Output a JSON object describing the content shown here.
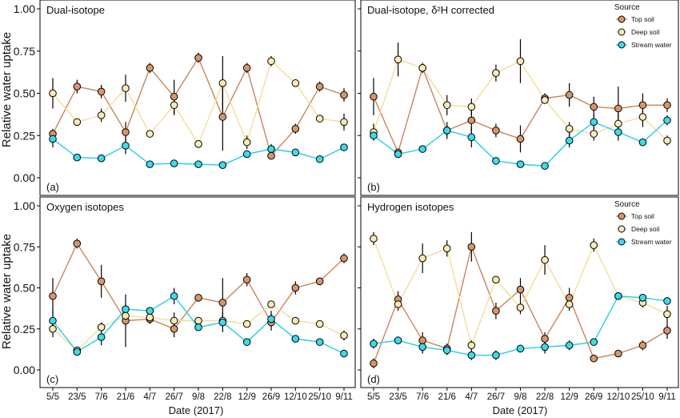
{
  "figure": {
    "ylabel": "Relative water uptake",
    "xlabel": "Date (2017)",
    "legend_title": "Source"
  },
  "colors": {
    "top_soil": "#d9956a",
    "top_soil_line": "#c9845c",
    "deep_soil": "#fbeab4",
    "deep_soil_line": "#f3dd9a",
    "stream_water": "#3ddaec",
    "stream_water_line": "#22d0e3"
  },
  "chart_data": [
    {
      "type": "line",
      "title": "Dual-isotope",
      "panel_label": "(a)",
      "categories": [
        "5/5",
        "23/5",
        "7/6",
        "21/6",
        "4/7",
        "26/7",
        "9/8",
        "22/8",
        "12/9",
        "26/9",
        "12/10",
        "25/10",
        "9/11"
      ],
      "ylim": [
        0,
        1
      ],
      "yticks": [
        "0.00",
        "0.25",
        "0.50",
        "0.75",
        "1.00"
      ],
      "show_legend": false,
      "series": [
        {
          "name": "Top soil",
          "values": [
            0.26,
            0.54,
            0.51,
            0.27,
            0.65,
            0.48,
            0.71,
            0.36,
            0.65,
            0.13,
            0.29,
            0.54,
            0.49
          ],
          "err": [
            0.03,
            0.04,
            0.04,
            0.06,
            0.03,
            0.1,
            0.03,
            0.2,
            0.03,
            0.02,
            0.03,
            0.03,
            0.04
          ]
        },
        {
          "name": "Deep soil",
          "values": [
            0.5,
            0.33,
            0.37,
            0.53,
            0.26,
            0.43,
            0.2,
            0.56,
            0.21,
            0.69,
            0.56,
            0.35,
            0.33
          ],
          "err": [
            0.09,
            0.02,
            0.04,
            0.08,
            0.02,
            0.06,
            0.02,
            0.16,
            0.04,
            0.03,
            0.02,
            0.02,
            0.05
          ]
        },
        {
          "name": "Stream water",
          "values": [
            0.23,
            0.12,
            0.115,
            0.19,
            0.08,
            0.085,
            0.08,
            0.075,
            0.14,
            0.17,
            0.15,
            0.11,
            0.18
          ],
          "err": [
            0.05,
            0.01,
            0.01,
            0.05,
            0.01,
            0.01,
            0.01,
            0.01,
            0.02,
            0.03,
            0.01,
            0.02,
            0.02
          ]
        }
      ]
    },
    {
      "type": "line",
      "title": "Dual-isotope, δ²H corrected",
      "panel_label": "(b)",
      "categories": [
        "5/5",
        "23/5",
        "7/6",
        "21/6",
        "4/7",
        "26/7",
        "9/8",
        "22/8",
        "12/9",
        "26/9",
        "12/10",
        "25/10",
        "9/11"
      ],
      "ylim": [
        0,
        1
      ],
      "yticks": [
        "0.00",
        "0.25",
        "0.50",
        "0.75",
        "1.00"
      ],
      "show_legend": true,
      "series": [
        {
          "name": "Top soil",
          "values": [
            0.48,
            0.15,
            0.65,
            0.28,
            0.34,
            0.28,
            0.23,
            0.47,
            0.49,
            0.42,
            0.41,
            0.43,
            0.43
          ],
          "err": [
            0.11,
            0.02,
            0.02,
            0.05,
            0.07,
            0.04,
            0.08,
            0.03,
            0.07,
            0.06,
            0.13,
            0.07,
            0.04
          ]
        },
        {
          "name": "Deep soil",
          "values": [
            0.27,
            0.7,
            0.65,
            0.43,
            0.42,
            0.62,
            0.69,
            0.46,
            0.29,
            0.26,
            0.32,
            0.36,
            0.22
          ],
          "err": [
            0.05,
            0.1,
            0.03,
            0.06,
            0.05,
            0.05,
            0.13,
            0.02,
            0.04,
            0.04,
            0.06,
            0.06,
            0.03
          ]
        },
        {
          "name": "Stream water",
          "values": [
            0.25,
            0.14,
            0.17,
            0.28,
            0.24,
            0.1,
            0.08,
            0.07,
            0.22,
            0.33,
            0.27,
            0.21,
            0.34
          ],
          "err": [
            0.03,
            0.02,
            0.01,
            0.03,
            0.06,
            0.01,
            0.01,
            0.01,
            0.04,
            0.04,
            0.05,
            0.01,
            0.03
          ]
        }
      ]
    },
    {
      "type": "line",
      "title": "Oxygen isotopes",
      "panel_label": "(c)",
      "categories": [
        "5/5",
        "23/5",
        "7/6",
        "21/6",
        "4/7",
        "26/7",
        "9/8",
        "22/8",
        "12/9",
        "26/9",
        "12/10",
        "25/10",
        "9/11"
      ],
      "ylim": [
        0,
        1
      ],
      "yticks": [
        "0.00",
        "0.25",
        "0.50",
        "0.75",
        "1.00"
      ],
      "show_legend": false,
      "series": [
        {
          "name": "Top soil",
          "values": [
            0.45,
            0.77,
            0.54,
            0.3,
            0.31,
            0.25,
            0.44,
            0.41,
            0.55,
            0.29,
            0.5,
            0.54,
            0.68
          ],
          "err": [
            0.11,
            0.03,
            0.1,
            0.16,
            0.03,
            0.05,
            0.02,
            0.15,
            0.04,
            0.05,
            0.04,
            0.02,
            0.03
          ]
        },
        {
          "name": "Deep soil",
          "values": [
            0.25,
            0.12,
            0.26,
            0.33,
            0.32,
            0.3,
            0.3,
            0.3,
            0.28,
            0.4,
            0.3,
            0.28,
            0.21
          ],
          "err": [
            0.05,
            0.02,
            0.03,
            0.05,
            0.02,
            0.05,
            0.02,
            0.03,
            0.02,
            0.02,
            0.02,
            0.02,
            0.03
          ]
        },
        {
          "name": "Stream water",
          "values": [
            0.3,
            0.11,
            0.2,
            0.37,
            0.36,
            0.45,
            0.26,
            0.29,
            0.17,
            0.31,
            0.19,
            0.17,
            0.1
          ],
          "err": [
            0.06,
            0.01,
            0.05,
            0.03,
            0.02,
            0.05,
            0.02,
            0.06,
            0.02,
            0.05,
            0.02,
            0.01,
            0.01
          ]
        }
      ]
    },
    {
      "type": "line",
      "title": "Hydrogen isotopes",
      "panel_label": "(d)",
      "categories": [
        "5/5",
        "23/5",
        "7/6",
        "21/6",
        "4/7",
        "26/7",
        "9/8",
        "22/8",
        "12/9",
        "26/9",
        "12/10",
        "25/10",
        "9/11"
      ],
      "ylim": [
        0,
        1
      ],
      "yticks": [
        "0.00",
        "0.25",
        "0.50",
        "0.75",
        "1.00"
      ],
      "show_legend": true,
      "series": [
        {
          "name": "Top soil",
          "values": [
            0.04,
            0.43,
            0.18,
            0.13,
            0.75,
            0.36,
            0.49,
            0.19,
            0.44,
            0.07,
            0.1,
            0.15,
            0.24
          ],
          "err": [
            0.03,
            0.05,
            0.05,
            0.03,
            0.09,
            0.05,
            0.07,
            0.04,
            0.06,
            0.02,
            0.01,
            0.03,
            0.05
          ]
        },
        {
          "name": "Deep soil",
          "values": [
            0.8,
            0.4,
            0.68,
            0.74,
            0.15,
            0.55,
            0.38,
            0.67,
            0.4,
            0.76,
            0.45,
            0.41,
            0.34
          ],
          "err": [
            0.04,
            0.04,
            0.09,
            0.05,
            0.03,
            0.02,
            0.04,
            0.09,
            0.04,
            0.04,
            0.02,
            0.03,
            0.05
          ]
        },
        {
          "name": "Stream water",
          "values": [
            0.16,
            0.18,
            0.14,
            0.12,
            0.09,
            0.09,
            0.13,
            0.14,
            0.15,
            0.17,
            0.45,
            0.44,
            0.42
          ],
          "err": [
            0.03,
            0.02,
            0.04,
            0.03,
            0.03,
            0.03,
            0.02,
            0.04,
            0.03,
            0.02,
            0.02,
            0.02,
            0.02
          ]
        }
      ]
    }
  ]
}
